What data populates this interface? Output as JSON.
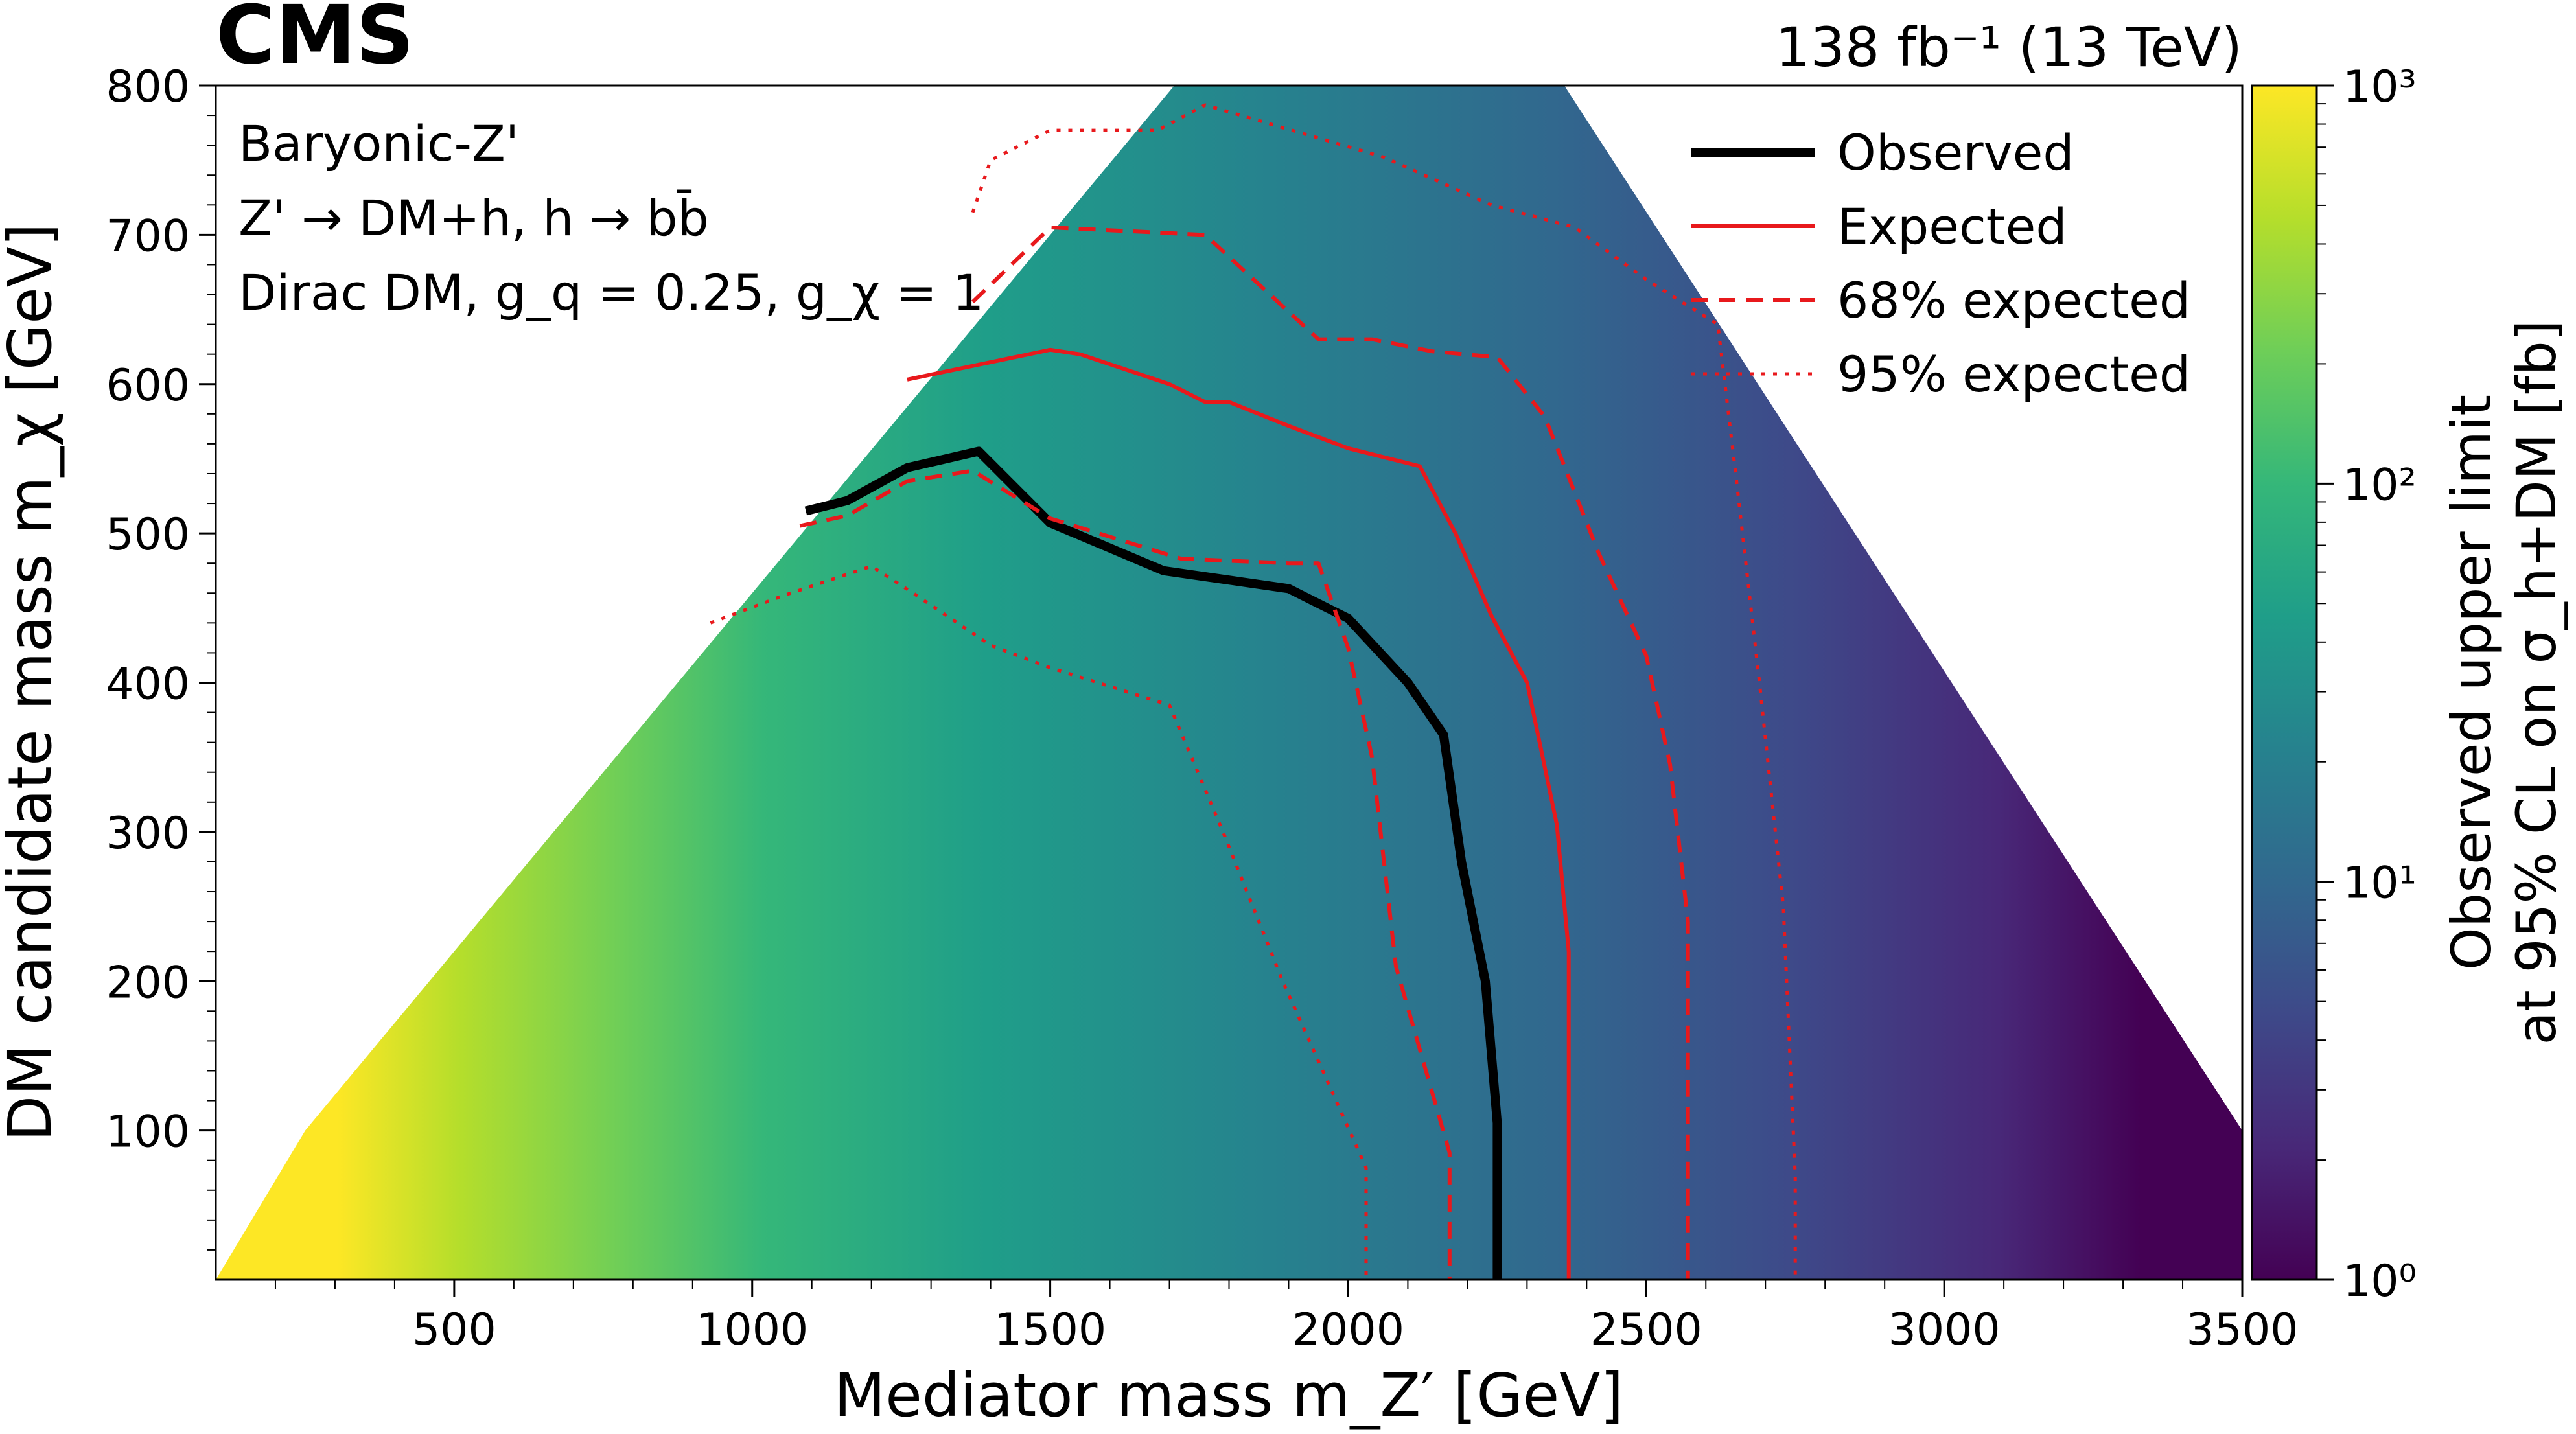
{
  "experiment_label": "CMS",
  "lumi_label": "138 fb⁻¹ (13 TeV)",
  "model_lines": [
    "Baryonic-Z'",
    "Z' → DM+h, h → bb̄",
    "Dirac DM, g_q = 0.25, g_χ = 1"
  ],
  "chart_data": {
    "type": "heatmap",
    "xlabel": "Mediator mass m_Z′ [GeV]",
    "ylabel": "DM candidate mass m_χ [GeV]",
    "colorbar_label": [
      "Observed upper limit",
      "at 95% CL on σ_h+DM [fb]"
    ],
    "xlim": [
      100,
      3500
    ],
    "ylim": [
      0,
      800
    ],
    "x_ticks": [
      "500",
      "1000",
      "1500",
      "2000",
      "2500",
      "3000",
      "3500"
    ],
    "y_ticks": [
      "100",
      "200",
      "300",
      "400",
      "500",
      "600",
      "700",
      "800"
    ],
    "colorbar_range": [
      1,
      1000
    ],
    "colorbar_scale": "log",
    "colorbar_ticks": [
      "10⁰",
      "10¹",
      "10²",
      "10³"
    ],
    "colormap": [
      "#440154",
      "#482878",
      "#3e4989",
      "#31688e",
      "#26828e",
      "#1f9e89",
      "#35b779",
      "#6ece58",
      "#b5de2b",
      "#fde725"
    ],
    "legend_position": "top-right",
    "legend": [
      "Observed",
      "Expected",
      "68% expected",
      "95% expected"
    ],
    "series": [
      {
        "name": "Observed",
        "color": "#000000",
        "style": "solid",
        "points": [
          [
            1090,
            515
          ],
          [
            1160,
            522
          ],
          [
            1260,
            544
          ],
          [
            1380,
            555
          ],
          [
            1500,
            507
          ],
          [
            1690,
            475
          ],
          [
            1900,
            463
          ],
          [
            2000,
            443
          ],
          [
            2100,
            400
          ],
          [
            2160,
            365
          ],
          [
            2190,
            280
          ],
          [
            2230,
            200
          ],
          [
            2250,
            105
          ],
          [
            2250,
            0
          ]
        ]
      },
      {
        "name": "Expected",
        "color": "#e8191c",
        "style": "solid",
        "points": [
          [
            1260,
            603
          ],
          [
            1500,
            623
          ],
          [
            1550,
            620
          ],
          [
            1700,
            600
          ],
          [
            1760,
            588
          ],
          [
            1800,
            588
          ],
          [
            1900,
            572
          ],
          [
            2000,
            557
          ],
          [
            2120,
            545
          ],
          [
            2180,
            500
          ],
          [
            2240,
            445
          ],
          [
            2300,
            400
          ],
          [
            2350,
            305
          ],
          [
            2370,
            220
          ],
          [
            2370,
            0
          ]
        ]
      },
      {
        "name": "68% expected",
        "color": "#e8191c",
        "style": "dashed",
        "segments": [
          [
            [
              1370,
              655
            ],
            [
              1500,
              705
            ],
            [
              1760,
              700
            ],
            [
              1950,
              630
            ],
            [
              2040,
              630
            ],
            [
              2140,
              622
            ],
            [
              2250,
              618
            ],
            [
              2330,
              578
            ],
            [
              2420,
              487
            ],
            [
              2500,
              418
            ],
            [
              2540,
              345
            ],
            [
              2570,
              240
            ],
            [
              2570,
              0
            ]
          ],
          [
            [
              1080,
              505
            ],
            [
              1160,
              512
            ],
            [
              1260,
              535
            ],
            [
              1370,
              542
            ],
            [
              1500,
              510
            ],
            [
              1720,
              483
            ],
            [
              1900,
              480
            ],
            [
              1950,
              480
            ],
            [
              2000,
              423
            ],
            [
              2040,
              350
            ],
            [
              2080,
              210
            ],
            [
              2170,
              85
            ],
            [
              2170,
              0
            ]
          ]
        ]
      },
      {
        "name": "95% expected",
        "color": "#e8191c",
        "style": "dotted",
        "segments": [
          [
            [
              1370,
              715
            ],
            [
              1400,
              750
            ],
            [
              1500,
              770
            ],
            [
              1680,
              770
            ],
            [
              1760,
              787
            ],
            [
              2060,
              752
            ],
            [
              2240,
              720
            ],
            [
              2380,
              705
            ],
            [
              2500,
              670
            ],
            [
              2620,
              640
            ],
            [
              2650,
              540
            ],
            [
              2690,
              400
            ],
            [
              2730,
              250
            ],
            [
              2750,
              70
            ],
            [
              2750,
              0
            ]
          ],
          [
            [
              930,
              440
            ],
            [
              1050,
              458
            ],
            [
              1200,
              478
            ],
            [
              1270,
              460
            ],
            [
              1400,
              425
            ],
            [
              1500,
              410
            ],
            [
              1700,
              385
            ],
            [
              1790,
              300
            ],
            [
              1890,
              200
            ],
            [
              2030,
              75
            ],
            [
              2030,
              0
            ]
          ]
        ]
      }
    ]
  }
}
